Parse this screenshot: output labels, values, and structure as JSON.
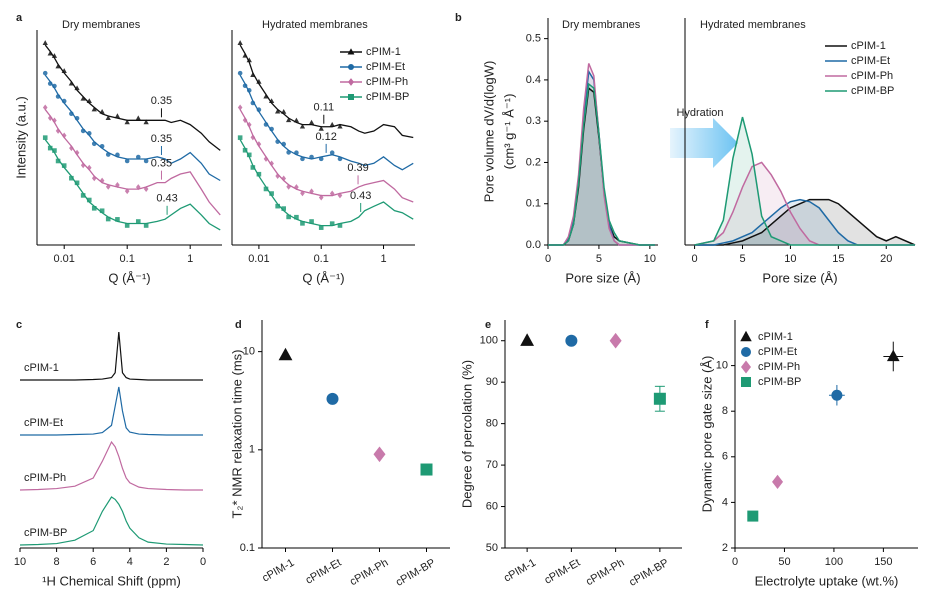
{
  "chart_data": [
    {
      "type": "saxs",
      "panel_label": "a",
      "title": "Dry membranes",
      "xlabel": "Q (Å⁻¹)",
      "ylabel": "Intensity (a.u.)",
      "xlog": true,
      "xlim": [
        0.0037,
        3.2
      ],
      "ylim": [
        0,
        100
      ],
      "xticks": [
        0.01,
        0.1,
        1
      ],
      "x": [
        0.005,
        0.006,
        0.007,
        0.008,
        0.01,
        0.013,
        0.016,
        0.02,
        0.025,
        0.03,
        0.04,
        0.05,
        0.07,
        0.1,
        0.15,
        0.2,
        0.3,
        0.4,
        0.5,
        0.7,
        1,
        1.5,
        2,
        3
      ],
      "series": [
        {
          "color": "#111111",
          "marker": "triangle",
          "peak": 0.35,
          "values": [
            93,
            90,
            87,
            84,
            80,
            76,
            72,
            69,
            66,
            64,
            61,
            60,
            59,
            58,
            58,
            58,
            58,
            58,
            57,
            58,
            56,
            52,
            48,
            44
          ]
        },
        {
          "color": "#1f6aa5",
          "marker": "circle",
          "peak": 0.35,
          "values": [
            79,
            76,
            73,
            70,
            66,
            62,
            58,
            54,
            51,
            48,
            45,
            43,
            41,
            40,
            40,
            40,
            41,
            40,
            38,
            40,
            43,
            38,
            33,
            30
          ]
        },
        {
          "color": "#c06aa0",
          "marker": "diamond",
          "peak": 0.35,
          "values": [
            63,
            60,
            57,
            54,
            50,
            46,
            42,
            38,
            35,
            32,
            29,
            28,
            27,
            26,
            26,
            27,
            29,
            29,
            31,
            33,
            34,
            26,
            20,
            14
          ]
        },
        {
          "color": "#1e9a74",
          "marker": "square",
          "peak": 0.43,
          "values": [
            49,
            46,
            43,
            40,
            36,
            32,
            28,
            24,
            20,
            18,
            15,
            13,
            11,
            10,
            10,
            10,
            11,
            12,
            14,
            17,
            19,
            14,
            10,
            7
          ]
        }
      ]
    },
    {
      "type": "saxs",
      "title": "Hydrated membranes",
      "xlabel": "Q (Å⁻¹)",
      "xlog": true,
      "xlim": [
        0.0037,
        3.2
      ],
      "ylim": [
        0,
        100
      ],
      "xticks": [
        0.01,
        0.1,
        1
      ],
      "legend": "upper right",
      "x": [
        0.005,
        0.006,
        0.007,
        0.008,
        0.01,
        0.013,
        0.016,
        0.02,
        0.025,
        0.03,
        0.04,
        0.05,
        0.07,
        0.1,
        0.15,
        0.2,
        0.3,
        0.4,
        0.5,
        0.7,
        1,
        1.5,
        2,
        3
      ],
      "series": [
        {
          "name": "cPIM-1",
          "color": "#111111",
          "marker": "triangle",
          "peak": 0.11,
          "values": [
            93,
            89,
            85,
            80,
            75,
            70,
            66,
            63,
            61,
            59,
            57,
            56,
            56,
            55,
            55,
            56,
            55,
            53,
            52,
            53,
            56,
            55,
            51,
            50
          ]
        },
        {
          "name": "cPIM-Et",
          "color": "#1f6aa5",
          "marker": "circle",
          "peak": 0.12,
          "values": [
            79,
            75,
            71,
            67,
            62,
            57,
            53,
            49,
            46,
            44,
            42,
            41,
            40,
            41,
            42,
            41,
            39,
            38,
            37,
            38,
            41,
            37,
            35,
            38
          ]
        },
        {
          "name": "cPIM-Ph",
          "color": "#c06aa0",
          "marker": "diamond",
          "peak": 0.39,
          "values": [
            63,
            59,
            55,
            51,
            46,
            41,
            37,
            33,
            30,
            28,
            26,
            25,
            24,
            23,
            23,
            24,
            25,
            27,
            28,
            29,
            30,
            26,
            22,
            20
          ]
        },
        {
          "name": "cPIM-BP",
          "color": "#1e9a74",
          "marker": "square",
          "peak": 0.43,
          "values": [
            49,
            45,
            41,
            37,
            32,
            27,
            23,
            19,
            16,
            14,
            12,
            11,
            10,
            9,
            9,
            10,
            11,
            13,
            16,
            18,
            20,
            16,
            15,
            12
          ]
        }
      ]
    },
    {
      "type": "area",
      "panel_label": "b",
      "title": "Dry membranes",
      "xlabel": "Pore size (Å)",
      "ylabel": [
        "Pore volume dV/d(logW)",
        "(cm³ g⁻¹ Å⁻¹)"
      ],
      "annotation": "Hydration",
      "xlim": [
        0,
        10.8
      ],
      "ylim": [
        0,
        0.55
      ],
      "xticks": [
        0,
        5,
        10
      ],
      "yticks": [
        {
          "value": 0,
          "label": "0.0"
        },
        0.1,
        0.2,
        0.3,
        0.4,
        0.5
      ],
      "x": [
        0,
        1.5,
        2,
        2.5,
        3,
        3.5,
        4,
        4.5,
        5,
        5.5,
        6,
        6.5,
        7,
        9,
        10.5
      ],
      "series": [
        {
          "color": "#111111",
          "values": [
            0,
            0,
            0.01,
            0.05,
            0.14,
            0.28,
            0.38,
            0.37,
            0.26,
            0.13,
            0.05,
            0.02,
            0.01,
            0,
            0
          ]
        },
        {
          "color": "#1f6aa5",
          "values": [
            0,
            0,
            0.015,
            0.06,
            0.16,
            0.31,
            0.42,
            0.4,
            0.27,
            0.13,
            0.05,
            0.01,
            0,
            0,
            0
          ]
        },
        {
          "color": "#c06aa0",
          "values": [
            0,
            0,
            0.02,
            0.07,
            0.17,
            0.33,
            0.44,
            0.41,
            0.27,
            0.12,
            0.04,
            0.01,
            0,
            0,
            0
          ]
        },
        {
          "color": "#1e9a74",
          "values": [
            0,
            0,
            0.01,
            0.05,
            0.15,
            0.29,
            0.39,
            0.38,
            0.27,
            0.14,
            0.06,
            0.03,
            0.01,
            0,
            0
          ]
        }
      ]
    },
    {
      "type": "area",
      "title": "Hydrated membranes",
      "xlabel": "Pore size (Å)",
      "legend": "upper right",
      "xlim": [
        -1,
        23
      ],
      "ylim": [
        0,
        0.55
      ],
      "xticks": [
        0,
        5,
        10,
        15,
        20
      ],
      "x": [
        0,
        2,
        3,
        4,
        5,
        6,
        7,
        8,
        9,
        10,
        11,
        12,
        13,
        14,
        15,
        16,
        17,
        18,
        19,
        20,
        21,
        23
      ],
      "series": [
        {
          "name": "cPIM-1",
          "color": "#111111",
          "values": [
            0,
            0,
            0,
            0.005,
            0.01,
            0.02,
            0.03,
            0.05,
            0.07,
            0.09,
            0.1,
            0.11,
            0.11,
            0.11,
            0.1,
            0.08,
            0.06,
            0.04,
            0.02,
            0.01,
            0.02,
            0
          ]
        },
        {
          "name": "cPIM-Et",
          "color": "#1f6aa5",
          "values": [
            0,
            0,
            0.005,
            0.01,
            0.02,
            0.03,
            0.05,
            0.07,
            0.09,
            0.105,
            0.11,
            0.105,
            0.09,
            0.06,
            0.03,
            0.01,
            0,
            0,
            0,
            0,
            0,
            0
          ]
        },
        {
          "name": "cPIM-Ph",
          "color": "#c06aa0",
          "values": [
            0,
            0.01,
            0.03,
            0.08,
            0.14,
            0.19,
            0.2,
            0.17,
            0.13,
            0.08,
            0.04,
            0.01,
            0,
            0,
            0,
            0,
            0,
            0,
            0,
            0,
            0,
            0
          ]
        },
        {
          "name": "cPIM-BP",
          "color": "#1e9a74",
          "values": [
            0,
            0.01,
            0.06,
            0.21,
            0.31,
            0.22,
            0.07,
            0.02,
            0.01,
            0,
            0,
            0,
            0,
            0,
            0,
            0,
            0,
            0,
            0,
            0,
            0,
            0
          ]
        }
      ]
    },
    {
      "type": "spectrum",
      "panel_label": "c",
      "xlabel": "¹H Chemical Shift (ppm)",
      "xlim": [
        10,
        0
      ],
      "xticks": [
        10,
        8,
        6,
        4,
        2,
        0
      ],
      "x": [
        10,
        9,
        8,
        7,
        6,
        5.5,
        5,
        4.8,
        4.6,
        4.4,
        4.2,
        4,
        3.5,
        3,
        2,
        1,
        0
      ],
      "series": [
        {
          "name": "cPIM-1",
          "color": "#111111",
          "values": [
            0,
            0,
            0,
            0,
            0.01,
            0.02,
            0.05,
            0.15,
            1,
            0.15,
            0.05,
            0.02,
            0.01,
            0,
            0,
            0,
            0
          ]
        },
        {
          "name": "cPIM-Et",
          "color": "#1f6aa5",
          "values": [
            0,
            0,
            0,
            0.01,
            0.02,
            0.05,
            0.2,
            0.6,
            1,
            0.5,
            0.15,
            0.06,
            0.02,
            0.01,
            0,
            0,
            0
          ]
        },
        {
          "name": "cPIM-Ph",
          "color": "#c06aa0",
          "values": [
            0,
            0.01,
            0.03,
            0.08,
            0.25,
            0.6,
            1,
            0.9,
            0.7,
            0.45,
            0.25,
            0.15,
            0.06,
            0.03,
            0.01,
            0,
            0
          ]
        },
        {
          "name": "cPIM-BP",
          "color": "#1e9a74",
          "values": [
            0,
            0.01,
            0.03,
            0.1,
            0.3,
            0.7,
            1,
            0.95,
            0.85,
            0.7,
            0.5,
            0.35,
            0.15,
            0.06,
            0.02,
            0.01,
            0
          ]
        }
      ]
    },
    {
      "type": "dot",
      "panel_label": "d",
      "ylabel": "T₂* NMR relaxation time (ms)",
      "ylog": true,
      "ylim": [
        0.1,
        21
      ],
      "yticks": [
        0.1,
        1,
        10
      ],
      "categories": [
        "cPIM-1",
        "cPIM-Et",
        "cPIM-Ph",
        "cPIM-BP"
      ],
      "values": [
        9.2,
        3.3,
        0.9,
        0.63
      ],
      "colors": [
        "#111111",
        "#1f6aa5",
        "#c87aab",
        "#1e9a74"
      ],
      "markers": [
        "triangle",
        "circle",
        "diamond",
        "square"
      ]
    },
    {
      "type": "dot",
      "panel_label": "e",
      "ylabel": "Degree of percolation (%)",
      "ylim": [
        50,
        105
      ],
      "yticks": [
        50,
        60,
        70,
        80,
        90,
        100
      ],
      "categories": [
        "cPIM-1",
        "cPIM-Et",
        "cPIM-Ph",
        "cPIM-BP"
      ],
      "values": [
        100,
        100,
        100,
        86
      ],
      "errors": [
        null,
        null,
        null,
        3
      ],
      "colors": [
        "#111111",
        "#1f6aa5",
        "#c87aab",
        "#1e9a74"
      ],
      "markers": [
        "triangle",
        "circle",
        "diamond",
        "square"
      ]
    },
    {
      "type": "scatter",
      "panel_label": "f",
      "xlabel": "Electrolyte uptake (wt.%)",
      "ylabel": "Dynamic pore gate size (Å)",
      "legend": "upper left",
      "xlim": [
        0,
        185
      ],
      "ylim": [
        2,
        12
      ],
      "xticks": [
        0,
        50,
        100,
        150
      ],
      "yticks": [
        2,
        4,
        6,
        8,
        10
      ],
      "series": [
        {
          "name": "cPIM-1",
          "color": "#111111",
          "marker": "triangle",
          "x": [
            160
          ],
          "values": [
            10.4
          ],
          "xerr": [
            10
          ],
          "yerr": [
            0.65
          ]
        },
        {
          "name": "cPIM-Et",
          "color": "#1f6aa5",
          "marker": "circle",
          "x": [
            103
          ],
          "values": [
            8.7
          ],
          "xerr": [
            8
          ],
          "yerr": [
            0.45
          ]
        },
        {
          "name": "cPIM-Ph",
          "color": "#c87aab",
          "marker": "diamond",
          "x": [
            43
          ],
          "values": [
            4.9
          ],
          "xerr": [
            5
          ],
          "yerr": [
            0.2
          ]
        },
        {
          "name": "cPIM-BP",
          "color": "#1e9a74",
          "marker": "square",
          "x": [
            18
          ],
          "values": [
            3.4
          ],
          "xerr": [
            4
          ],
          "yerr": [
            0.15
          ]
        }
      ]
    }
  ]
}
